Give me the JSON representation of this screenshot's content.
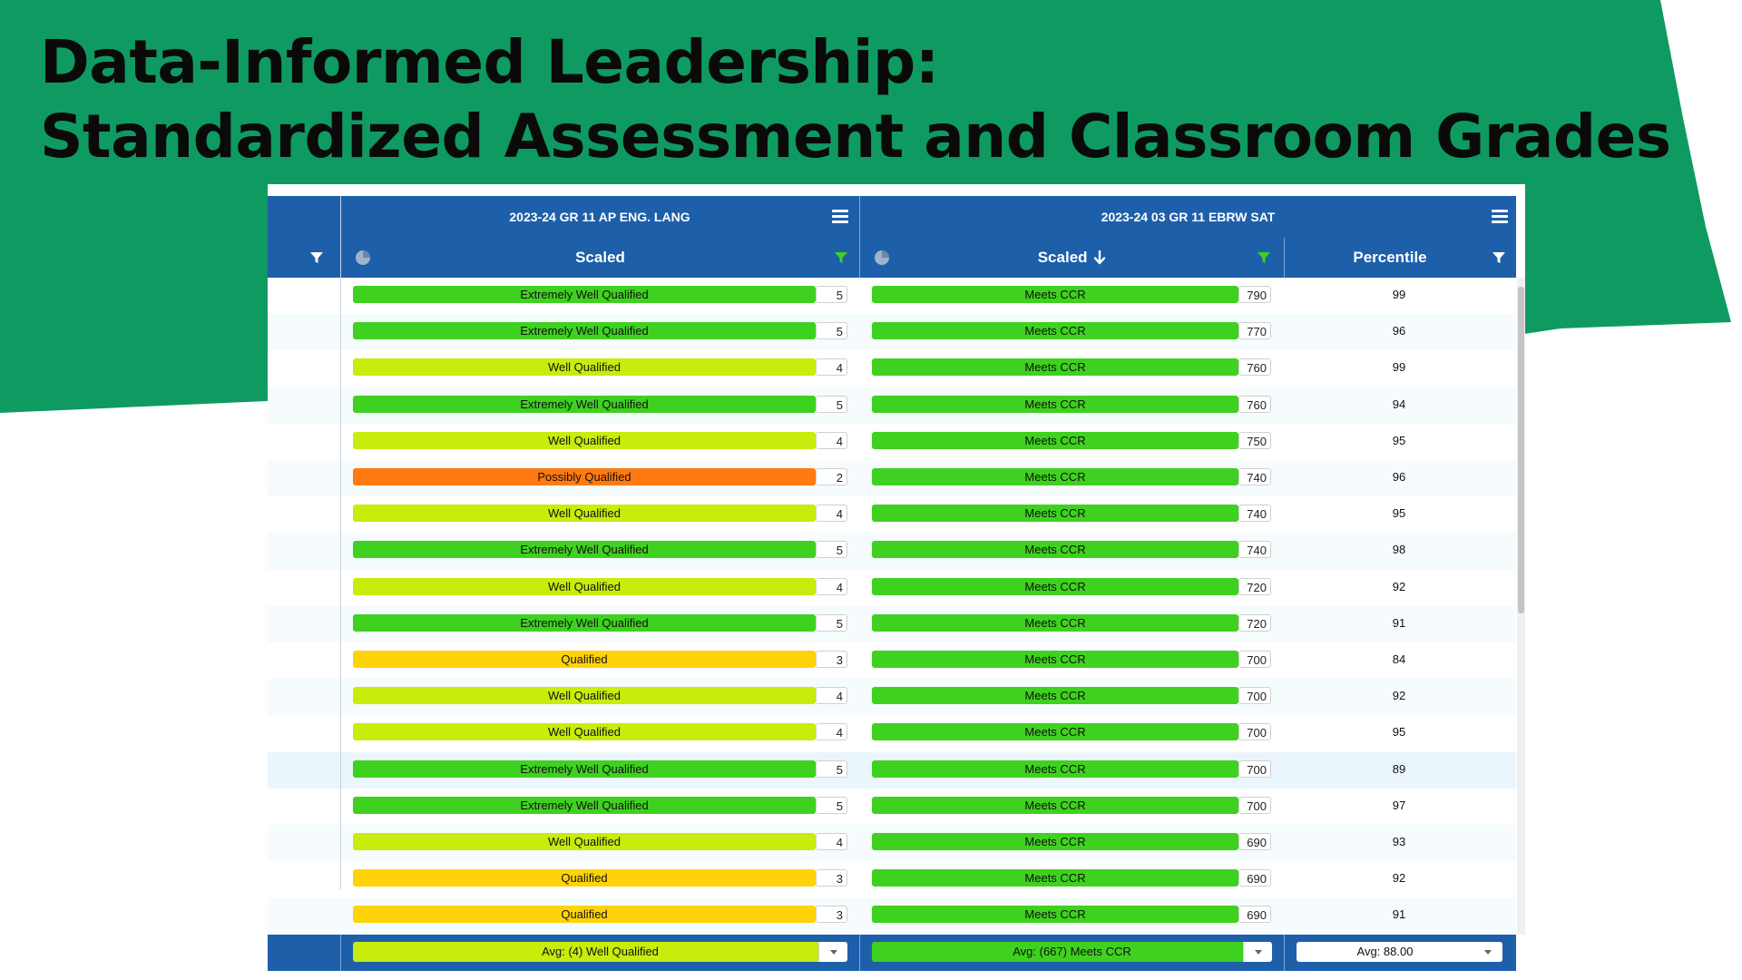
{
  "slide": {
    "title_line1": "Data-Informed Leadership:",
    "title_line2": "Standardized Assessment and Classroom Grades",
    "green_color": "#0f9a62"
  },
  "table": {
    "groups": [
      {
        "title": "2023-24 GR 11 AP ENG. LANG",
        "menu_icon": "hamburger-menu-icon"
      },
      {
        "title": "2023-24 03 GR 11 EBRW SAT",
        "menu_icon": "hamburger-menu-icon"
      }
    ],
    "columns": {
      "ap_scaled": "Scaled",
      "sat_scaled": "Scaled",
      "percentile": "Percentile"
    },
    "sort": {
      "column": "sat_scaled",
      "direction": "descending"
    },
    "colors": {
      "Extremely Well Qualified": "#3fd11f",
      "Well Qualified": "#c8ec0c",
      "Qualified": "#ffd30a",
      "Possibly Qualified": "#ff7a10",
      "Meets CCR": "#3fd11f"
    },
    "rows": [
      {
        "ap_label": "Extremely Well Qualified",
        "ap_score": "5",
        "sat_label": "Meets CCR",
        "sat_score": "790",
        "percentile": "99"
      },
      {
        "ap_label": "Extremely Well Qualified",
        "ap_score": "5",
        "sat_label": "Meets CCR",
        "sat_score": "770",
        "percentile": "96"
      },
      {
        "ap_label": "Well Qualified",
        "ap_score": "4",
        "sat_label": "Meets CCR",
        "sat_score": "760",
        "percentile": "99"
      },
      {
        "ap_label": "Extremely Well Qualified",
        "ap_score": "5",
        "sat_label": "Meets CCR",
        "sat_score": "760",
        "percentile": "94"
      },
      {
        "ap_label": "Well Qualified",
        "ap_score": "4",
        "sat_label": "Meets CCR",
        "sat_score": "750",
        "percentile": "95"
      },
      {
        "ap_label": "Possibly Qualified",
        "ap_score": "2",
        "sat_label": "Meets CCR",
        "sat_score": "740",
        "percentile": "96"
      },
      {
        "ap_label": "Well Qualified",
        "ap_score": "4",
        "sat_label": "Meets CCR",
        "sat_score": "740",
        "percentile": "95"
      },
      {
        "ap_label": "Extremely Well Qualified",
        "ap_score": "5",
        "sat_label": "Meets CCR",
        "sat_score": "740",
        "percentile": "98"
      },
      {
        "ap_label": "Well Qualified",
        "ap_score": "4",
        "sat_label": "Meets CCR",
        "sat_score": "720",
        "percentile": "92"
      },
      {
        "ap_label": "Extremely Well Qualified",
        "ap_score": "5",
        "sat_label": "Meets CCR",
        "sat_score": "720",
        "percentile": "91"
      },
      {
        "ap_label": "Qualified",
        "ap_score": "3",
        "sat_label": "Meets CCR",
        "sat_score": "700",
        "percentile": "84"
      },
      {
        "ap_label": "Well Qualified",
        "ap_score": "4",
        "sat_label": "Meets CCR",
        "sat_score": "700",
        "percentile": "92"
      },
      {
        "ap_label": "Well Qualified",
        "ap_score": "4",
        "sat_label": "Meets CCR",
        "sat_score": "700",
        "percentile": "95"
      },
      {
        "ap_label": "Extremely Well Qualified",
        "ap_score": "5",
        "sat_label": "Meets CCR",
        "sat_score": "700",
        "percentile": "89"
      },
      {
        "ap_label": "Extremely Well Qualified",
        "ap_score": "5",
        "sat_label": "Meets CCR",
        "sat_score": "700",
        "percentile": "97"
      },
      {
        "ap_label": "Well Qualified",
        "ap_score": "4",
        "sat_label": "Meets CCR",
        "sat_score": "690",
        "percentile": "93"
      },
      {
        "ap_label": "Qualified",
        "ap_score": "3",
        "sat_label": "Meets CCR",
        "sat_score": "690",
        "percentile": "92"
      },
      {
        "ap_label": "Qualified",
        "ap_score": "3",
        "sat_label": "Meets CCR",
        "sat_score": "690",
        "percentile": "91"
      }
    ],
    "footer": {
      "ap_avg": "Avg: (4) Well Qualified",
      "sat_avg": "Avg: (667) Meets CCR",
      "pct_avg": "Avg: 88.00"
    }
  }
}
